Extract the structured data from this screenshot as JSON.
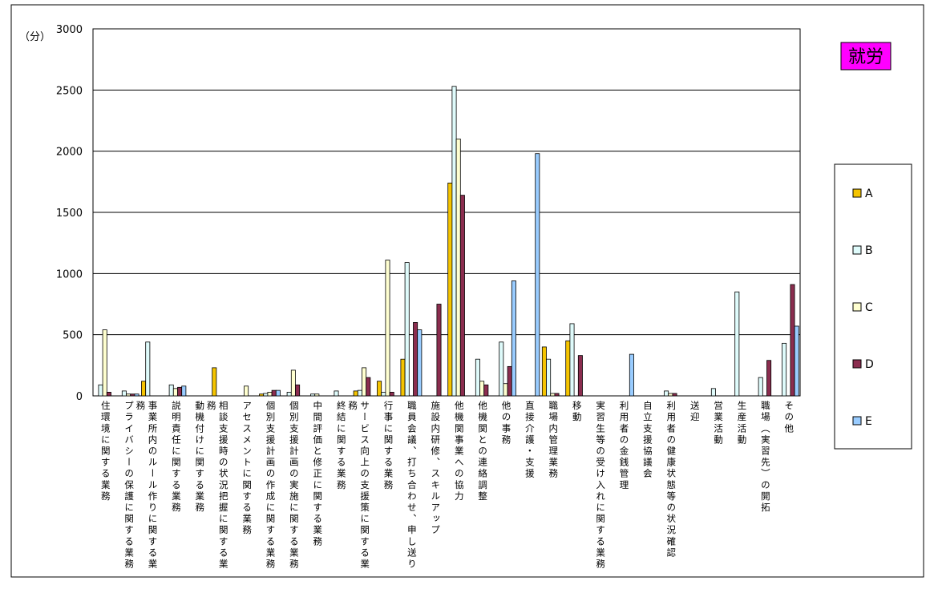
{
  "chart_data": {
    "type": "bar",
    "title": "就労",
    "y_label": "（分）",
    "categories": [
      "住環境に関する業務",
      "プライバシーの保護に関する業務",
      "事業所内のルール作りに関する業務",
      "説明責任に関する業務",
      "動機付けに関する業務",
      "相談支援時の状況把握に関する業務",
      "アセスメントに関する業務",
      "個別支援計画の作成に関する業務",
      "個別支援計画の実施に関する業務",
      "中間評価と修正に関する業務",
      "終結に関する業務",
      "サービス向上の支援策に関する業務",
      "行事に関する業務",
      "職員会議、打ち合わせ、申し送り",
      "施設内研修、スキルアップ",
      "他機関事業への協力",
      "他機関との連絡調整",
      "他の事務",
      "直接介護・支援",
      "職場内管理業務",
      "移動",
      "実習生等の受け入れに関する業務",
      "利用者の金銭管理",
      "自立支援協議会",
      "利用者の健康状態等の状況確認",
      "送迎",
      "営業活動",
      "生産活動",
      "職場（実習先）の開拓",
      "その他"
    ],
    "series": [
      {
        "name": "A",
        "color": "#f5c400",
        "values": [
          0,
          0,
          120,
          0,
          0,
          230,
          0,
          15,
          0,
          0,
          0,
          40,
          120,
          300,
          0,
          1740,
          0,
          0,
          0,
          400,
          450,
          0,
          0,
          0,
          0,
          0,
          0,
          0,
          0,
          0
        ]
      },
      {
        "name": "B",
        "color": "#dffbfb",
        "values": [
          90,
          40,
          440,
          90,
          0,
          0,
          0,
          20,
          30,
          15,
          40,
          45,
          30,
          1090,
          0,
          2530,
          300,
          440,
          0,
          300,
          590,
          0,
          0,
          0,
          40,
          0,
          60,
          850,
          150,
          430
        ]
      },
      {
        "name": "C",
        "color": "#ffffd0",
        "values": [
          540,
          15,
          0,
          60,
          0,
          0,
          80,
          30,
          210,
          15,
          0,
          230,
          1110,
          0,
          0,
          2100,
          120,
          100,
          0,
          20,
          0,
          0,
          0,
          0,
          20,
          0,
          0,
          0,
          0,
          0
        ]
      },
      {
        "name": "D",
        "color": "#8b2d4f",
        "values": [
          30,
          15,
          0,
          70,
          0,
          0,
          0,
          45,
          90,
          0,
          0,
          150,
          30,
          600,
          750,
          1640,
          90,
          240,
          0,
          20,
          330,
          0,
          0,
          0,
          20,
          0,
          0,
          0,
          290,
          910
        ]
      },
      {
        "name": "E",
        "color": "#99ccff",
        "values": [
          0,
          15,
          0,
          80,
          0,
          0,
          0,
          45,
          0,
          0,
          0,
          0,
          0,
          540,
          0,
          0,
          0,
          940,
          1980,
          0,
          0,
          0,
          340,
          0,
          0,
          0,
          0,
          0,
          0,
          570
        ]
      }
    ],
    "ylim": [
      0,
      3000
    ],
    "yticks": [
      0,
      500,
      1000,
      1500,
      2000,
      2500,
      3000
    ],
    "grid": true,
    "legend": "right"
  }
}
